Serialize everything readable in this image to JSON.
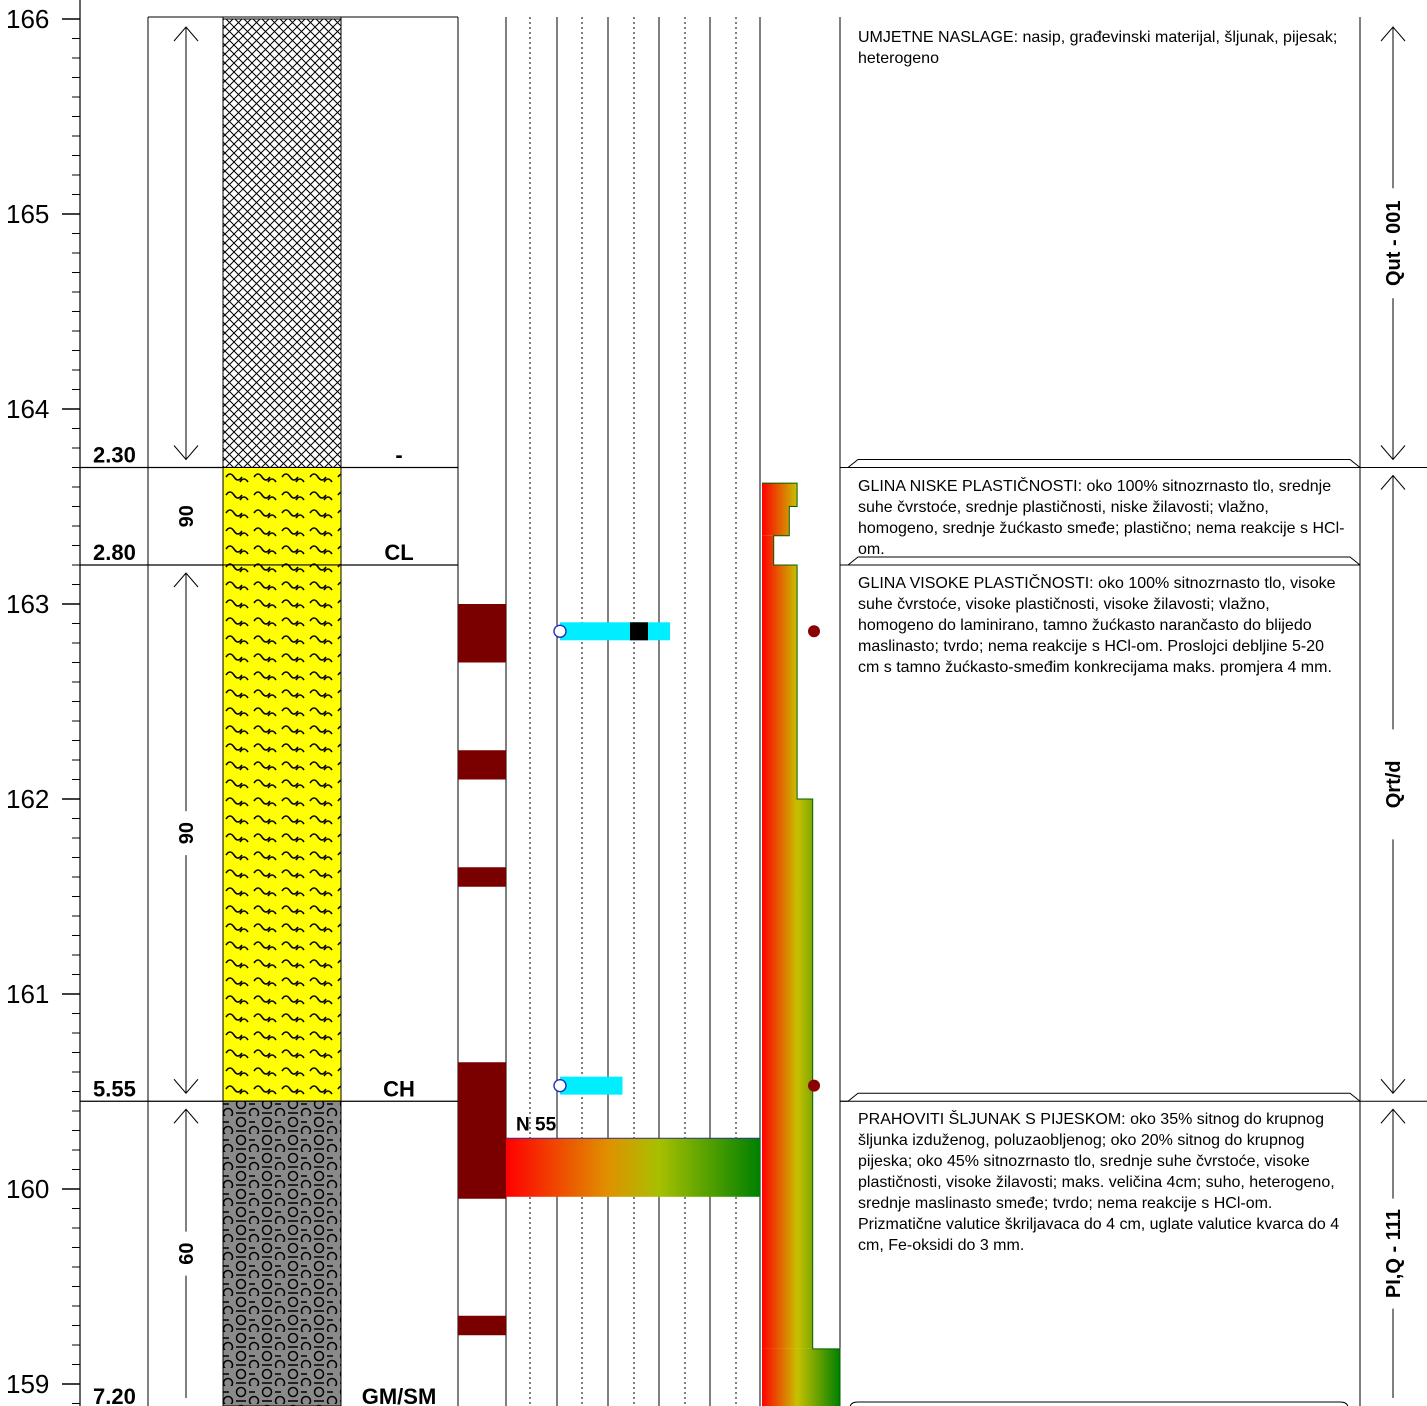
{
  "elevation_axis": {
    "ticks": [
      {
        "label": "166",
        "value": 166
      },
      {
        "label": "165",
        "value": 165
      },
      {
        "label": "164",
        "value": 164
      },
      {
        "label": "163",
        "value": 163
      },
      {
        "label": "162",
        "value": 162
      },
      {
        "label": "161",
        "value": 161
      },
      {
        "label": "160",
        "value": 160
      },
      {
        "label": "159",
        "value": 159
      }
    ],
    "top": 166.0,
    "bottom": 158.8
  },
  "layers": [
    {
      "top_elev": 166.0,
      "bottom_elev": 163.7,
      "depth_label": "2.30",
      "symbol": "-",
      "pattern": "crosshatch",
      "thickness_label": "",
      "unit": "Qut - 001",
      "description": "UMJETNE NASLAGE: nasip, građevinski materijal, šljunak, pijesak; heterogeno"
    },
    {
      "top_elev": 163.7,
      "bottom_elev": 163.2,
      "depth_label": "2.80",
      "symbol": "CL",
      "pattern": "clay",
      "thickness_label": "90",
      "unit": "",
      "description": "GLINA NISKE PLASTIČNOSTI: oko 100% sitnozrnasto tlo, srednje suhe čvrstoće, srednje plastičnosti, niske žilavosti; vlažno, homogeno, srednje žućkasto smeđe; plastično; nema reakcije s HCl-om."
    },
    {
      "top_elev": 163.2,
      "bottom_elev": 160.45,
      "depth_label": "5.55",
      "symbol": "CH",
      "pattern": "clay",
      "thickness_label": "90",
      "unit": "Qrt/d",
      "description": "GLINA VISOKE PLASTIČNOSTI: oko 100% sitnozrnasto tlo, visoke suhe čvrstoće, visoke plastičnosti, visoke žilavosti; vlažno, homogeno do laminirano, tamno žućkasto narančasto do blijedo maslinasto; tvrdo; nema reakcije s HCl-om. Proslojci debljine 5-20 cm s tamno žućkasto-smeđim konkrecijama maks. promjera 4 mm."
    },
    {
      "top_elev": 160.45,
      "bottom_elev": 158.8,
      "depth_label": "7.20",
      "symbol": "GM/SM",
      "pattern": "gravel",
      "thickness_label": "60",
      "unit": "PI,Q - 111",
      "description": "PRAHOVITI ŠLJUNAK S PIJESKOM: oko 35% sitnog do krupnog šljunka izduženog, poluzaobljenog; oko 20% sitnog do krupnog pijeska; oko 45% sitnozrnasto tlo, srednje suhe čvrstoće, visoke plastičnosti, visoke žilavosti; maks. veličina 4cm; suho, heterogeno, srednje maslinasto smeđe; tvrdo; nema reakcije s HCl-om. Prizmatične valutice škriljavaca do 4 cm, uglate valutice kvarca do 4 cm, Fe-oksidi do 3 mm."
    }
  ],
  "samples": [
    {
      "top": 163.0,
      "bottom": 162.7
    },
    {
      "top": 162.25,
      "bottom": 162.1
    },
    {
      "top": 161.65,
      "bottom": 161.55
    },
    {
      "top": 160.65,
      "bottom": 159.95
    },
    {
      "top": 159.35,
      "bottom": 159.25
    }
  ],
  "spt": {
    "label": "N 55",
    "top": 160.26,
    "bottom": 159.96
  },
  "lab_tests": [
    {
      "elev": 162.86,
      "range_end": 0.44,
      "marker": 0.28
    },
    {
      "elev": 160.53,
      "range_end": 0.25,
      "marker": null
    }
  ],
  "strength_profile": [
    {
      "top": 163.62,
      "bottom": 163.5,
      "value": 0.45
    },
    {
      "top": 163.5,
      "bottom": 163.35,
      "value": 0.35
    },
    {
      "top": 163.35,
      "bottom": 163.2,
      "value": 0.15
    },
    {
      "top": 163.2,
      "bottom": 162.0,
      "value": 0.45
    },
    {
      "top": 162.0,
      "bottom": 159.18,
      "value": 0.65
    },
    {
      "top": 159.18,
      "bottom": 158.8,
      "value": 1.0
    }
  ],
  "water_points": [
    {
      "elev": 162.86
    },
    {
      "elev": 160.53
    }
  ],
  "colors": {
    "sample": "#7a0000",
    "clay_fill": "#ffff00",
    "gravel_fill": "#8a8a8a",
    "lab_bar": "#00eeff",
    "water_point": "#8b0000",
    "gradient_red": "#ff0000",
    "gradient_mid": "#c8c000",
    "gradient_green": "#008000"
  }
}
